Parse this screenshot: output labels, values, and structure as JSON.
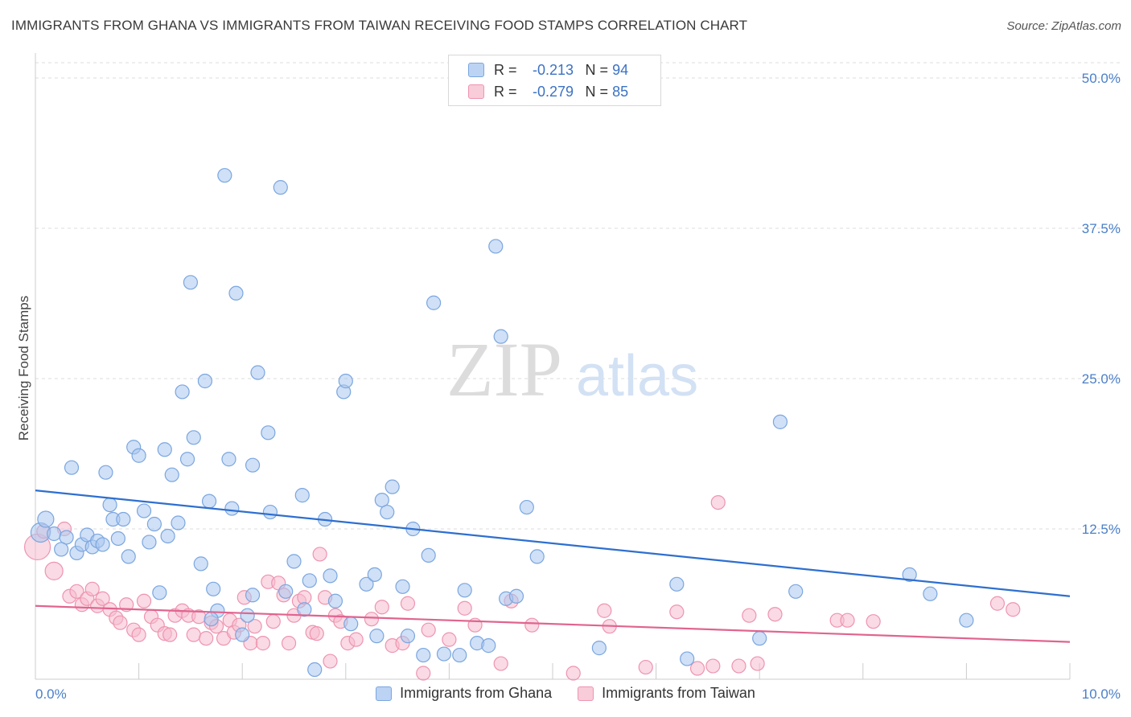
{
  "title": "IMMIGRANTS FROM GHANA VS IMMIGRANTS FROM TAIWAN RECEIVING FOOD STAMPS CORRELATION CHART",
  "source": "Source: ZipAtlas.com",
  "watermark": {
    "zip": "ZIP",
    "atlas": "atlas"
  },
  "legend": {
    "ghana": {
      "r_label": "R =",
      "r_value": "-0.213",
      "n_label": "N =",
      "n_value": "94"
    },
    "taiwan": {
      "r_label": "R =",
      "r_value": "-0.279",
      "n_label": "N =",
      "n_value": "85"
    }
  },
  "bottom_legend": {
    "ghana": "Immigrants from Ghana",
    "taiwan": "Immigrants from Taiwan"
  },
  "colors": {
    "ghana_fill": "#a9c6ef",
    "ghana_stroke": "#7aa6e0",
    "ghana_line": "#2e6fcf",
    "taiwan_fill": "#f6bccd",
    "taiwan_stroke": "#ee94b0",
    "taiwan_line": "#e0648f",
    "grid": "#dddddd",
    "tick_text": "#4a7fc9"
  },
  "chart_data": {
    "type": "scatter",
    "title": "IMMIGRANTS FROM GHANA VS IMMIGRANTS FROM TAIWAN RECEIVING FOOD STAMPS CORRELATION CHART",
    "xlabel": "",
    "ylabel": "Receiving Food Stamps",
    "xlim": [
      0,
      10
    ],
    "ylim": [
      0,
      50
    ],
    "x_tick_labels": [
      "0.0%",
      "10.0%"
    ],
    "y_ticks": [
      12.5,
      25.0,
      37.5,
      50.0
    ],
    "y_tick_labels": [
      "12.5%",
      "25.0%",
      "37.5%",
      "50.0%"
    ],
    "grid": true,
    "legend_position": "top-center",
    "series": [
      {
        "name": "Immigrants from Ghana",
        "trend": [
          [
            0,
            15.7
          ],
          [
            10,
            6.9
          ]
        ],
        "points": [
          [
            0.05,
            12.2
          ],
          [
            0.1,
            13.3
          ],
          [
            0.18,
            12.1
          ],
          [
            0.3,
            11.8
          ],
          [
            0.35,
            17.6
          ],
          [
            0.4,
            10.5
          ],
          [
            0.45,
            11.2
          ],
          [
            0.5,
            12.0
          ],
          [
            0.55,
            11.0
          ],
          [
            0.6,
            11.5
          ],
          [
            0.65,
            11.2
          ],
          [
            0.68,
            17.2
          ],
          [
            0.72,
            14.5
          ],
          [
            0.75,
            13.3
          ],
          [
            0.8,
            11.7
          ],
          [
            0.85,
            13.3
          ],
          [
            0.9,
            10.2
          ],
          [
            0.95,
            19.3
          ],
          [
            1.0,
            18.6
          ],
          [
            1.05,
            14.0
          ],
          [
            1.1,
            11.4
          ],
          [
            1.15,
            12.9
          ],
          [
            1.2,
            7.2
          ],
          [
            1.25,
            19.1
          ],
          [
            1.28,
            11.9
          ],
          [
            1.32,
            17.0
          ],
          [
            1.38,
            13.0
          ],
          [
            1.42,
            23.9
          ],
          [
            1.47,
            18.3
          ],
          [
            1.5,
            33.0
          ],
          [
            1.53,
            20.1
          ],
          [
            1.6,
            9.6
          ],
          [
            1.64,
            24.8
          ],
          [
            1.68,
            14.8
          ],
          [
            1.72,
            7.5
          ],
          [
            1.76,
            5.7
          ],
          [
            1.83,
            41.9
          ],
          [
            1.87,
            18.3
          ],
          [
            1.9,
            14.2
          ],
          [
            1.94,
            32.1
          ],
          [
            2.0,
            3.7
          ],
          [
            2.05,
            5.3
          ],
          [
            2.1,
            17.8
          ],
          [
            2.15,
            25.5
          ],
          [
            2.25,
            20.5
          ],
          [
            2.27,
            13.9
          ],
          [
            2.37,
            40.9
          ],
          [
            2.42,
            7.3
          ],
          [
            2.5,
            9.8
          ],
          [
            2.58,
            15.3
          ],
          [
            2.65,
            8.2
          ],
          [
            2.7,
            0.8
          ],
          [
            2.8,
            13.3
          ],
          [
            2.85,
            8.6
          ],
          [
            2.9,
            6.5
          ],
          [
            2.98,
            23.9
          ],
          [
            3.0,
            24.8
          ],
          [
            3.2,
            7.9
          ],
          [
            3.28,
            8.7
          ],
          [
            3.3,
            3.6
          ],
          [
            3.35,
            14.9
          ],
          [
            3.4,
            13.9
          ],
          [
            3.45,
            16.0
          ],
          [
            3.55,
            7.7
          ],
          [
            3.6,
            3.6
          ],
          [
            3.65,
            12.5
          ],
          [
            3.75,
            2.0
          ],
          [
            3.8,
            10.3
          ],
          [
            3.85,
            31.3
          ],
          [
            3.95,
            2.1
          ],
          [
            4.1,
            2.0
          ],
          [
            4.15,
            7.4
          ],
          [
            4.27,
            3.0
          ],
          [
            4.38,
            2.8
          ],
          [
            4.45,
            36.0
          ],
          [
            4.5,
            28.5
          ],
          [
            4.55,
            6.7
          ],
          [
            4.65,
            6.9
          ],
          [
            4.75,
            14.3
          ],
          [
            4.85,
            10.2
          ],
          [
            5.45,
            2.6
          ],
          [
            6.2,
            7.9
          ],
          [
            6.3,
            1.7
          ],
          [
            7.0,
            3.4
          ],
          [
            7.2,
            21.4
          ],
          [
            7.35,
            7.3
          ],
          [
            8.45,
            8.7
          ],
          [
            8.65,
            7.1
          ],
          [
            9.0,
            4.9
          ],
          [
            2.1,
            7.0
          ],
          [
            1.7,
            5.0
          ],
          [
            3.05,
            4.6
          ],
          [
            2.6,
            5.8
          ],
          [
            0.25,
            10.8
          ]
        ]
      },
      {
        "name": "Immigrants from Taiwan",
        "trend": [
          [
            0,
            6.1
          ],
          [
            10,
            3.1
          ]
        ],
        "points": [
          [
            0.02,
            11.0
          ],
          [
            0.08,
            12.3
          ],
          [
            0.18,
            9.0
          ],
          [
            0.28,
            12.5
          ],
          [
            0.33,
            6.9
          ],
          [
            0.4,
            7.3
          ],
          [
            0.45,
            6.2
          ],
          [
            0.5,
            6.7
          ],
          [
            0.55,
            7.5
          ],
          [
            0.6,
            6.1
          ],
          [
            0.65,
            6.7
          ],
          [
            0.72,
            5.8
          ],
          [
            0.78,
            5.1
          ],
          [
            0.82,
            4.7
          ],
          [
            0.88,
            6.2
          ],
          [
            0.95,
            4.1
          ],
          [
            1.0,
            3.7
          ],
          [
            1.05,
            6.5
          ],
          [
            1.12,
            5.2
          ],
          [
            1.18,
            4.5
          ],
          [
            1.25,
            3.8
          ],
          [
            1.3,
            3.7
          ],
          [
            1.35,
            5.3
          ],
          [
            1.42,
            5.7
          ],
          [
            1.48,
            5.3
          ],
          [
            1.53,
            3.7
          ],
          [
            1.58,
            5.2
          ],
          [
            1.65,
            3.4
          ],
          [
            1.7,
            4.7
          ],
          [
            1.75,
            4.4
          ],
          [
            1.82,
            3.4
          ],
          [
            1.88,
            4.9
          ],
          [
            1.92,
            3.9
          ],
          [
            1.97,
            4.5
          ],
          [
            2.02,
            6.8
          ],
          [
            2.08,
            3.0
          ],
          [
            2.12,
            4.4
          ],
          [
            2.2,
            3.0
          ],
          [
            2.25,
            8.1
          ],
          [
            2.3,
            4.8
          ],
          [
            2.35,
            8.0
          ],
          [
            2.4,
            7.0
          ],
          [
            2.45,
            3.0
          ],
          [
            2.5,
            5.3
          ],
          [
            2.55,
            6.5
          ],
          [
            2.6,
            6.8
          ],
          [
            2.68,
            3.9
          ],
          [
            2.72,
            3.8
          ],
          [
            2.75,
            10.4
          ],
          [
            2.8,
            6.8
          ],
          [
            2.85,
            1.5
          ],
          [
            2.9,
            5.3
          ],
          [
            2.95,
            4.8
          ],
          [
            3.02,
            3.0
          ],
          [
            3.1,
            3.3
          ],
          [
            3.25,
            5.0
          ],
          [
            3.35,
            6.0
          ],
          [
            3.45,
            2.8
          ],
          [
            3.55,
            3.0
          ],
          [
            3.6,
            6.3
          ],
          [
            3.75,
            0.5
          ],
          [
            3.8,
            4.1
          ],
          [
            4.0,
            3.3
          ],
          [
            4.15,
            5.9
          ],
          [
            4.25,
            4.5
          ],
          [
            4.5,
            1.3
          ],
          [
            4.6,
            6.5
          ],
          [
            4.8,
            4.5
          ],
          [
            5.2,
            0.5
          ],
          [
            5.5,
            5.7
          ],
          [
            5.55,
            4.4
          ],
          [
            5.9,
            1.0
          ],
          [
            6.2,
            5.6
          ],
          [
            6.4,
            0.9
          ],
          [
            6.55,
            1.1
          ],
          [
            6.6,
            14.7
          ],
          [
            6.8,
            1.1
          ],
          [
            6.98,
            1.3
          ],
          [
            6.9,
            5.3
          ],
          [
            7.15,
            5.4
          ],
          [
            7.75,
            4.9
          ],
          [
            7.85,
            4.9
          ],
          [
            8.1,
            4.8
          ],
          [
            9.3,
            6.3
          ],
          [
            9.45,
            5.8
          ]
        ]
      }
    ]
  }
}
